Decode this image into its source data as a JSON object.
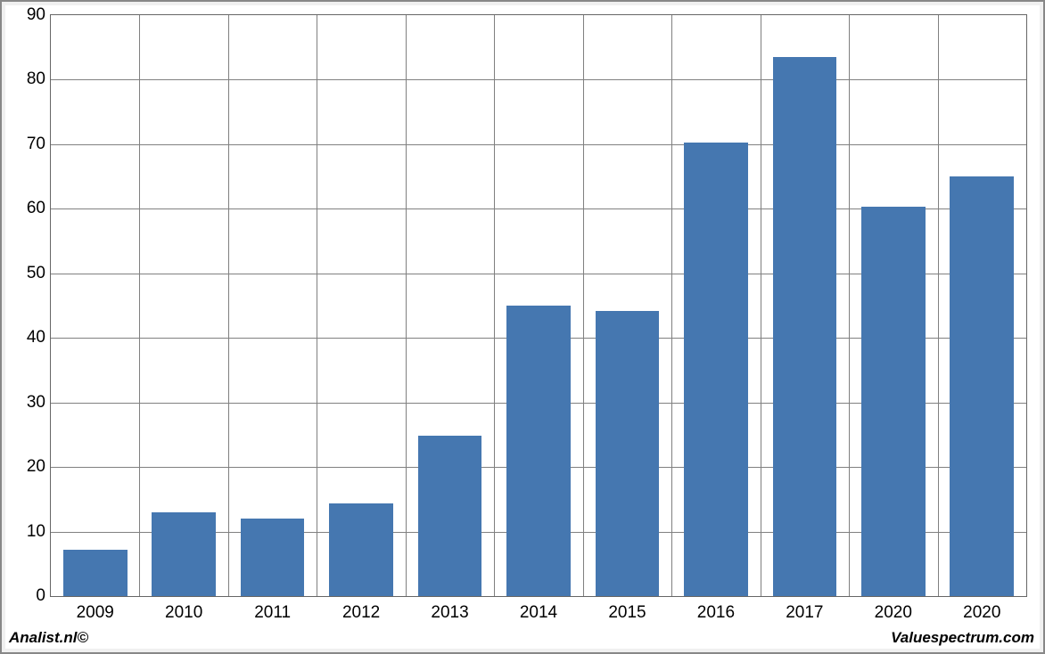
{
  "chart": {
    "type": "bar",
    "categories": [
      "2009",
      "2010",
      "2011",
      "2012",
      "2013",
      "2014",
      "2015",
      "2016",
      "2017",
      "2020",
      "2020"
    ],
    "values": [
      7.2,
      13.0,
      12.0,
      14.3,
      24.8,
      45.0,
      44.2,
      70.3,
      83.5,
      60.3,
      65.0
    ],
    "bar_color": "#4577b0",
    "background_color": "#ffffff",
    "outer_background": "#f0f0f0",
    "border_color": "#888888",
    "grid_color": "#808080",
    "ylim": [
      0,
      90
    ],
    "ytick_step": 10,
    "yticks": [
      0,
      10,
      20,
      30,
      40,
      50,
      60,
      70,
      80,
      90
    ],
    "x_gaps": 11,
    "bar_width_ratio": 0.72,
    "label_fontsize": 19,
    "footer_fontsize": 17
  },
  "footer": {
    "left": "Analist.nl©",
    "right": "Valuespectrum.com"
  }
}
